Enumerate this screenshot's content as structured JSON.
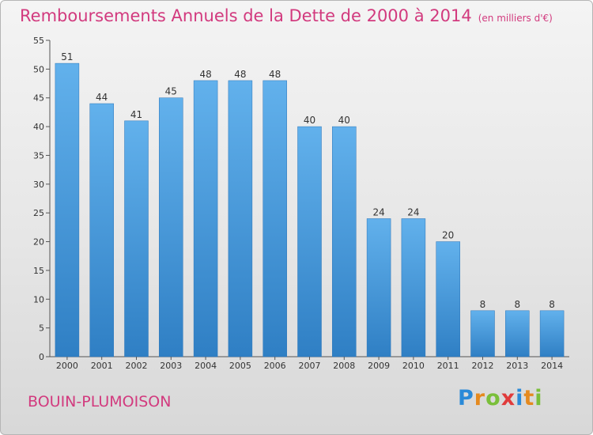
{
  "header": {
    "title": "Remboursements Annuels de la Dette de 2000 à 2014",
    "unit": "(en milliers d'€)"
  },
  "footer": {
    "city": "BOUIN-PLUMOISON",
    "logo": [
      "P",
      "r",
      "o",
      "x",
      "i",
      "t",
      "i"
    ],
    "logo_colors": [
      "#2a8ad8",
      "#e58a1f",
      "#7abf3a",
      "#e03b3b",
      "#2a8ad8",
      "#e58a1f",
      "#7abf3a"
    ]
  },
  "colors": {
    "accent": "#d23a7e",
    "bar_top": "#62b1ec",
    "bar_bottom": "#2f7fc4"
  },
  "chart_data": {
    "type": "bar",
    "title": "Remboursements Annuels de la Dette de 2000 à 2014",
    "unit": "(en milliers d'€)",
    "categories": [
      "2000",
      "2001",
      "2002",
      "2003",
      "2004",
      "2005",
      "2006",
      "2007",
      "2008",
      "2009",
      "2010",
      "2011",
      "2012",
      "2013",
      "2014"
    ],
    "values": [
      51,
      44,
      41,
      45,
      48,
      48,
      48,
      40,
      40,
      24,
      24,
      20,
      8,
      8,
      8
    ],
    "ylim": [
      0,
      55
    ],
    "yticks": [
      0,
      5,
      10,
      15,
      20,
      25,
      30,
      35,
      40,
      45,
      50,
      55
    ],
    "grid": false,
    "legend": "none"
  }
}
